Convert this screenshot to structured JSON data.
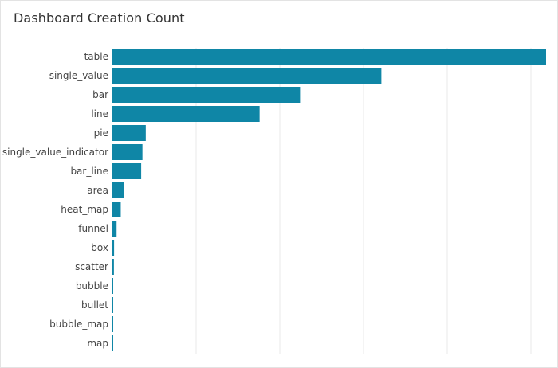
{
  "chart_data": {
    "type": "bar",
    "orientation": "horizontal",
    "title": "Dashboard Creation Count",
    "xlabel": "",
    "ylabel": "",
    "categories": [
      "table",
      "single_value",
      "bar",
      "line",
      "pie",
      "single_value_indicator",
      "bar_line",
      "area",
      "heat_map",
      "funnel",
      "box",
      "scatter",
      "bubble",
      "bullet",
      "bubble_map",
      "map"
    ],
    "values": [
      5200,
      3225,
      2250,
      1765,
      400,
      360,
      345,
      135,
      100,
      50,
      20,
      18,
      9,
      7,
      5,
      3
    ],
    "xlim": [
      0,
      5200
    ],
    "grid": true,
    "legend": "none",
    "bar_color": "#0f86a6"
  }
}
